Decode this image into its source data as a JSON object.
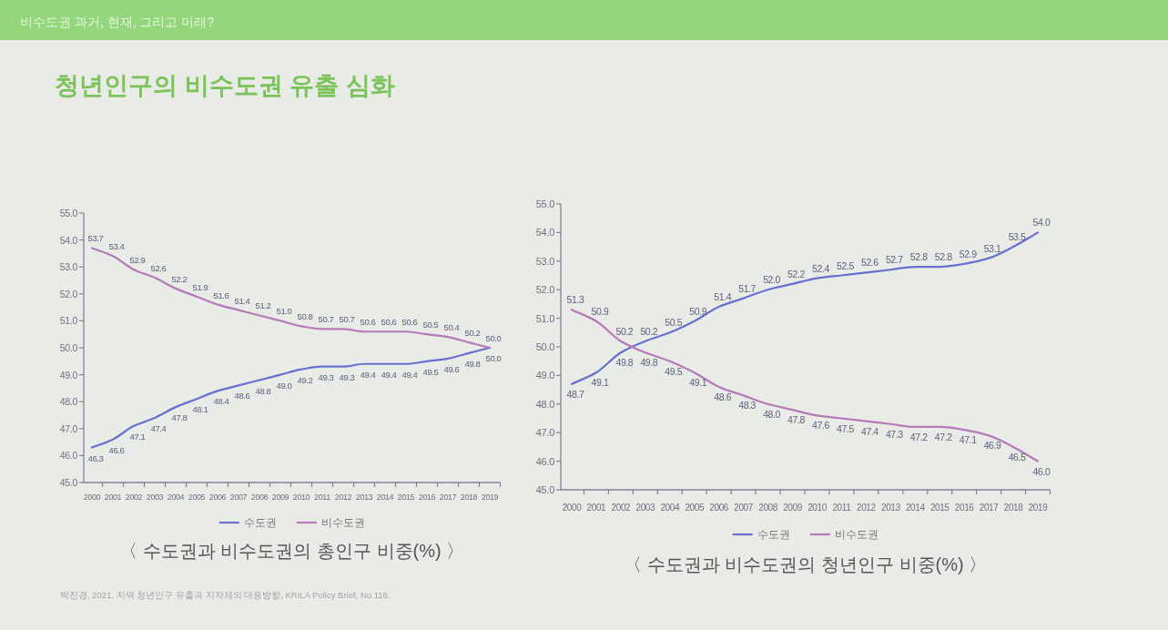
{
  "chart_data": [
    {
      "type": "other",
      "title": "청년인구의 비수도권 유출 심화",
      "annotations": [
        "비수도권 과거, 현재, 그리고 미래?"
      ]
    },
    {
      "type": "line",
      "title": "〈 수도권과 비수도권의 총인구 비중(%) 〉",
      "categories": [
        "2000",
        "2001",
        "2002",
        "2003",
        "2004",
        "2005",
        "2006",
        "2007",
        "2008",
        "2009",
        "2010",
        "2011",
        "2012",
        "2013",
        "2014",
        "2015",
        "2016",
        "2017",
        "2018",
        "2019"
      ],
      "ylim": [
        45,
        55
      ],
      "yticks": [
        {
          "value": 45,
          "label": "45.0"
        },
        {
          "value": 46,
          "label": "46.0"
        },
        {
          "value": 47,
          "label": "47.0"
        },
        {
          "value": 48,
          "label": "48.0"
        },
        {
          "value": 49,
          "label": "49.0"
        },
        {
          "value": 50,
          "label": "50.0"
        },
        {
          "value": 51,
          "label": "51.0"
        },
        {
          "value": 52,
          "label": "52.0"
        },
        {
          "value": 53,
          "label": "53.0"
        },
        {
          "value": 54,
          "label": "54.0"
        },
        {
          "value": 55,
          "label": "55.0"
        }
      ],
      "legend": "bottom",
      "series": [
        {
          "name": "수도권",
          "color": "#6870cf",
          "values": [
            46.3,
            46.6,
            47.1,
            47.4,
            47.8,
            48.1,
            48.4,
            48.6,
            48.8,
            49.0,
            49.2,
            49.3,
            49.3,
            49.4,
            49.4,
            49.4,
            49.5,
            49.6,
            49.8,
            50.0
          ],
          "value_labels": [
            "46.3",
            "46.6",
            "47.1",
            "47.4",
            "47.8",
            "48.1",
            "48.4",
            "48.6",
            "48.8",
            "49.0",
            "49.2",
            "49.3",
            "49.3",
            "49.4",
            "49.4",
            "49.4",
            "49.5",
            "49.6",
            "49.8",
            "50.0"
          ]
        },
        {
          "name": "비수도권",
          "color": "#b57ab8",
          "values": [
            53.7,
            53.4,
            52.9,
            52.6,
            52.2,
            51.9,
            51.6,
            51.4,
            51.2,
            51.0,
            50.8,
            50.7,
            50.7,
            50.6,
            50.6,
            50.6,
            50.5,
            50.4,
            50.2,
            50.0
          ],
          "value_labels": [
            "53.7",
            "53.4",
            "52.9",
            "52.6",
            "52.2",
            "51.9",
            "51.6",
            "51.4",
            "51.2",
            "51.0",
            "50.8",
            "50.7",
            "50.7",
            "50.6",
            "50.6",
            "50.6",
            "50.5",
            "50.4",
            "50.2",
            "50.0"
          ]
        }
      ],
      "annotations": [
        "박진경, 2021, 지역 청년인구 유출과 지자체의 대응방향, KRILA Policy Brief, No.116."
      ]
    },
    {
      "type": "line",
      "title": "〈 수도권과 비수도권의 청년인구 비중(%) 〉",
      "categories": [
        "2000",
        "2001",
        "2002",
        "2003",
        "2004",
        "2005",
        "2006",
        "2007",
        "2008",
        "2009",
        "2010",
        "2011",
        "2012",
        "2013",
        "2014",
        "2015",
        "2016",
        "2017",
        "2018",
        "2019"
      ],
      "ylim": [
        45,
        55
      ],
      "yticks": [
        {
          "value": 45,
          "label": "45.0"
        },
        {
          "value": 46,
          "label": "46.0"
        },
        {
          "value": 47,
          "label": "47.0"
        },
        {
          "value": 48,
          "label": "48.0"
        },
        {
          "value": 49,
          "label": "49.0"
        },
        {
          "value": 50,
          "label": "50.0"
        },
        {
          "value": 51,
          "label": "51.0"
        },
        {
          "value": 52,
          "label": "52.0"
        },
        {
          "value": 53,
          "label": "53.0"
        },
        {
          "value": 54,
          "label": "54.0"
        },
        {
          "value": 55,
          "label": "55.0"
        }
      ],
      "legend": "bottom",
      "series": [
        {
          "name": "수도권",
          "color": "#6870cf",
          "values": [
            48.7,
            49.1,
            49.8,
            50.2,
            50.5,
            50.9,
            51.4,
            51.7,
            52.0,
            52.2,
            52.4,
            52.5,
            52.6,
            52.7,
            52.8,
            52.8,
            52.9,
            53.1,
            53.5,
            54.0
          ],
          "value_labels": [
            "48.7",
            "49.1",
            "49.8",
            "50.2",
            "50.5",
            "50.9",
            "51.4",
            "51.7",
            "52.0",
            "52.2",
            "52.4",
            "52.5",
            "52.6",
            "52.7",
            "52.8",
            "52.8",
            "52.9",
            "53.1",
            "53.5",
            "54.0"
          ]
        },
        {
          "name": "비수도권",
          "color": "#b57ab8",
          "values": [
            51.3,
            50.9,
            50.2,
            49.8,
            49.5,
            49.1,
            48.6,
            48.3,
            48.0,
            47.8,
            47.6,
            47.5,
            47.4,
            47.3,
            47.2,
            47.2,
            47.1,
            46.9,
            46.5,
            46.0
          ],
          "value_labels": [
            "51.3",
            "50.9",
            "50.2",
            "49.8",
            "49.5",
            "49.1",
            "48.6",
            "48.3",
            "48.0",
            "47.8",
            "47.6",
            "47.5",
            "47.4",
            "47.3",
            "47.2",
            "47.2",
            "47.1",
            "46.9",
            "46.5",
            "46.0"
          ]
        }
      ]
    }
  ]
}
